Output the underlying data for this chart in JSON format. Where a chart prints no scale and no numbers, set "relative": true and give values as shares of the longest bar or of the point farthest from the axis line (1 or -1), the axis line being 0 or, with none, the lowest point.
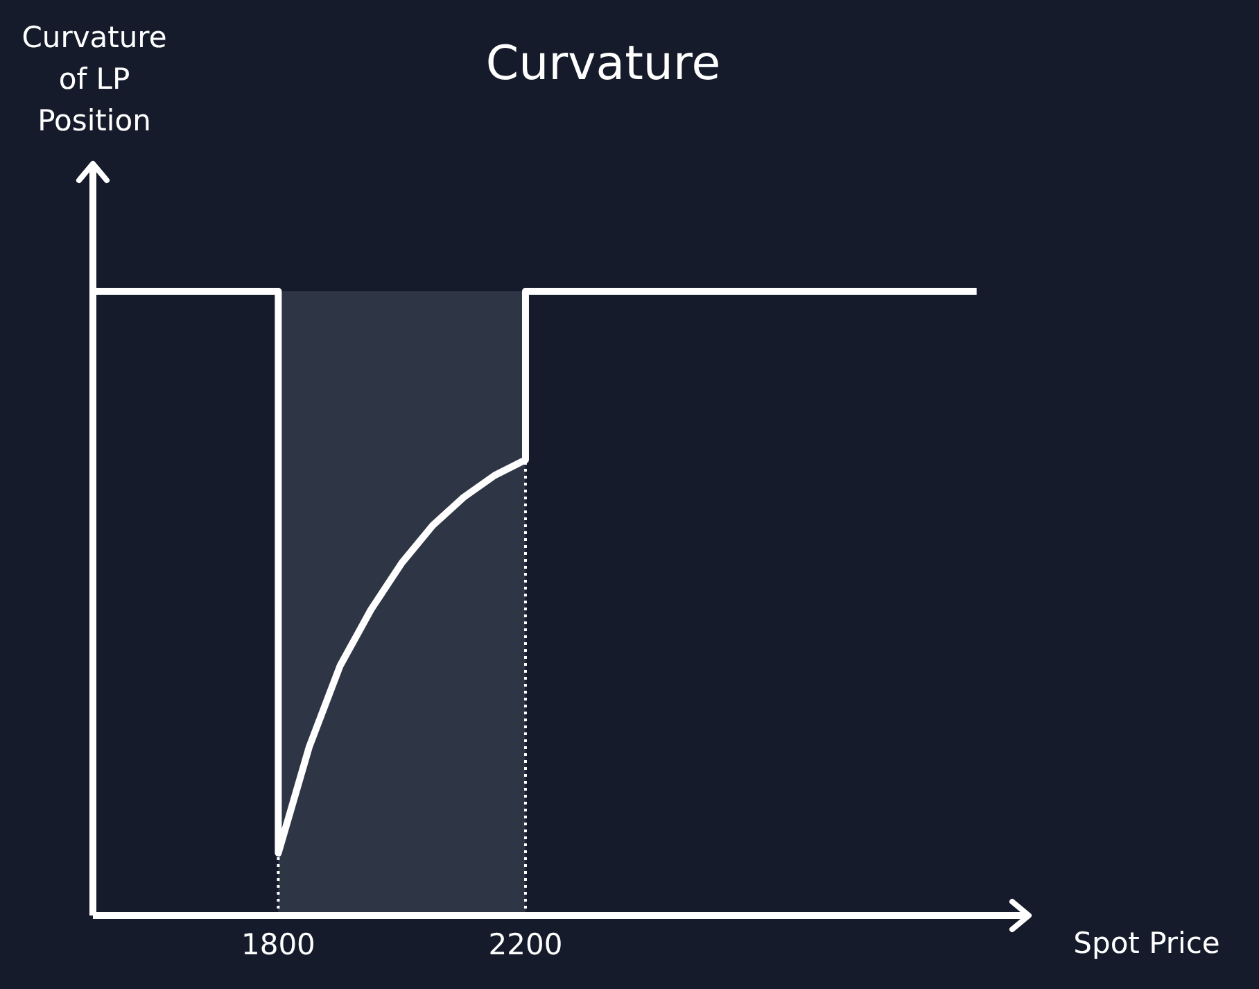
{
  "chart_data": {
    "type": "line",
    "title": "Curvature",
    "annotations": [
      "Curvature of LP Position"
    ],
    "xlabel": "Spot Price",
    "relative": true,
    "xlim": [
      1500,
      3010
    ],
    "xticks": [
      1800,
      2200
    ],
    "series": [
      {
        "color": "#ffffff",
        "x": [
          1500,
          1800,
          1800,
          1850,
          1900,
          1950,
          2000,
          2050,
          2100,
          2150,
          2200,
          2200,
          2930
        ],
        "values": [
          1,
          1,
          0.1,
          0.27,
          0.4,
          0.49,
          0.565,
          0.625,
          0.67,
          0.705,
          0.73,
          1,
          1
        ]
      }
    ],
    "bands": [
      {
        "axis": "x",
        "from": 1800,
        "to": 2200,
        "color": "#2e3545"
      }
    ],
    "ref_lines": [
      {
        "axis": "x",
        "value": 1800,
        "line_style": "dotted",
        "color": "#ffffff"
      },
      {
        "axis": "x",
        "value": 2200,
        "line_style": "dotted",
        "color": "#ffffff"
      }
    ],
    "marker": "none",
    "line_style": "solid",
    "grid": false
  }
}
